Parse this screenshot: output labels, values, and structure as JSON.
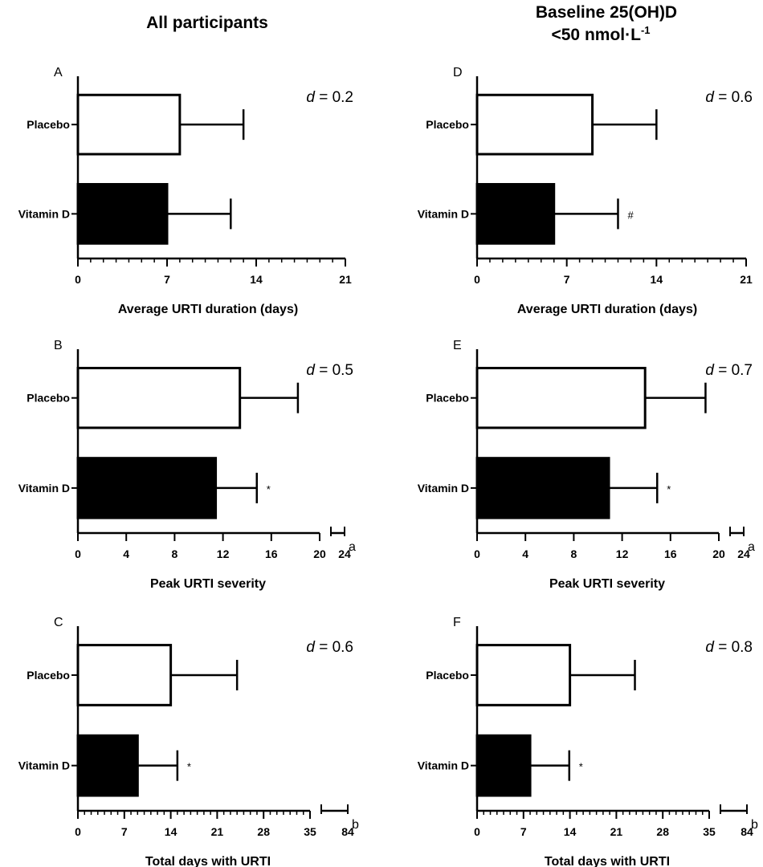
{
  "titles": {
    "left": "All participants",
    "right_line1": "Baseline 25(OH)D",
    "right_line2": "<50 nmol·L",
    "right_sup": "-1"
  },
  "chart_data": [
    {
      "type": "bar",
      "orientation": "horizontal",
      "panel": "A",
      "effect_label": "d",
      "effect_value": "= 0.2",
      "categories": [
        "Placebo",
        "Vitamin D"
      ],
      "values": [
        8.0,
        7.0
      ],
      "error_upper": [
        13.0,
        12.0
      ],
      "colors": [
        "#ffffff",
        "#000000"
      ],
      "markers": [
        "",
        ""
      ],
      "xlabel": "Average URTI duration (days)",
      "xlim": [
        0,
        21
      ],
      "xticks": [
        0,
        7,
        14,
        21
      ],
      "minor_step": 1,
      "break": null
    },
    {
      "type": "bar",
      "orientation": "horizontal",
      "panel": "B",
      "effect_label": "d",
      "effect_value": "= 0.5",
      "categories": [
        "Placebo",
        "Vitamin D"
      ],
      "values": [
        13.4,
        11.4
      ],
      "error_upper": [
        18.2,
        14.8
      ],
      "colors": [
        "#ffffff",
        "#000000"
      ],
      "markers": [
        "",
        "*"
      ],
      "xlabel": "Peak URTI severity",
      "xlim": [
        0,
        20
      ],
      "xticks": [
        0,
        4,
        8,
        12,
        16,
        20
      ],
      "minor_step": null,
      "break": {
        "end_tick": "24",
        "note": "a"
      }
    },
    {
      "type": "bar",
      "orientation": "horizontal",
      "panel": "C",
      "effect_label": "d",
      "effect_value": "= 0.6",
      "categories": [
        "Placebo",
        "Vitamin D"
      ],
      "values": [
        14.0,
        9.0
      ],
      "error_upper": [
        24.0,
        15.0
      ],
      "colors": [
        "#ffffff",
        "#000000"
      ],
      "markers": [
        "",
        "*"
      ],
      "xlabel": "Total days with URTI",
      "xlim": [
        0,
        35
      ],
      "xticks": [
        0,
        7,
        14,
        21,
        28,
        35
      ],
      "minor_step": 1,
      "break": {
        "end_tick": "84",
        "note": "b"
      }
    },
    {
      "type": "bar",
      "orientation": "horizontal",
      "panel": "D",
      "effect_label": "d",
      "effect_value": "= 0.6",
      "categories": [
        "Placebo",
        "Vitamin D"
      ],
      "values": [
        9.0,
        6.0
      ],
      "error_upper": [
        14.0,
        11.0
      ],
      "colors": [
        "#ffffff",
        "#000000"
      ],
      "markers": [
        "",
        "#"
      ],
      "xlabel": "Average URTI duration (days)",
      "xlim": [
        0,
        21
      ],
      "xticks": [
        0,
        7,
        14,
        21
      ],
      "minor_step": 1,
      "break": null
    },
    {
      "type": "bar",
      "orientation": "horizontal",
      "panel": "E",
      "effect_label": "d",
      "effect_value": "= 0.7",
      "categories": [
        "Placebo",
        "Vitamin D"
      ],
      "values": [
        13.9,
        10.9
      ],
      "error_upper": [
        18.9,
        14.9
      ],
      "colors": [
        "#ffffff",
        "#000000"
      ],
      "markers": [
        "",
        "*"
      ],
      "xlabel": "Peak URTI severity",
      "xlim": [
        0,
        20
      ],
      "xticks": [
        0,
        4,
        8,
        12,
        16,
        20
      ],
      "minor_step": null,
      "break": {
        "end_tick": "24",
        "note": "a"
      }
    },
    {
      "type": "bar",
      "orientation": "horizontal",
      "panel": "F",
      "effect_label": "d",
      "effect_value": "= 0.8",
      "categories": [
        "Placebo",
        "Vitamin D"
      ],
      "values": [
        14.0,
        8.0
      ],
      "error_upper": [
        23.8,
        13.9
      ],
      "colors": [
        "#ffffff",
        "#000000"
      ],
      "markers": [
        "",
        "*"
      ],
      "xlabel": "Total days with URTI",
      "xlim": [
        0,
        35
      ],
      "xticks": [
        0,
        7,
        14,
        21,
        28,
        35
      ],
      "minor_step": 1,
      "break": {
        "end_tick": "84",
        "note": "b"
      }
    }
  ]
}
